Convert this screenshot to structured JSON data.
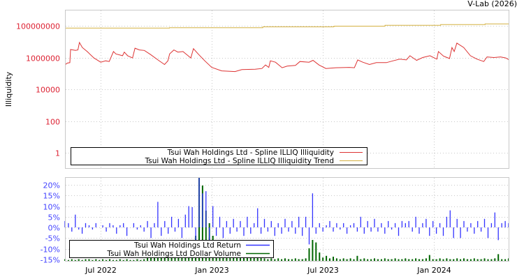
{
  "credit": "V-Lab (2026)",
  "colors": {
    "illiq": "#dd3333",
    "trend": "#d4b040",
    "ret": "#3333ff",
    "vol": "#006600",
    "ytick_top": "#dd2233",
    "ytick_bottom": "#4444ff",
    "grid": "#c8c8c8"
  },
  "chart_data": [
    {
      "type": "line",
      "title": "",
      "ylabel": "Illiquidity",
      "yscale": "log",
      "ylim": [
        0.3,
        1000000000
      ],
      "yticks": [
        1,
        100,
        10000,
        1000000,
        100000000
      ],
      "ytick_labels": [
        "1",
        "100",
        "10000",
        "1000000",
        "100000000"
      ],
      "xlim": [
        2022.34,
        2024.336
      ],
      "xticks": [
        2022.5,
        2023.0,
        2023.5,
        2024.0
      ],
      "grid": true,
      "legend_position": "bottom-left",
      "series": [
        {
          "name": "Tsui Wah Holdings Ltd - Spline ILLIQ Illiquidity",
          "color_key": "illiq",
          "points": [
            [
              2022.342,
              363000
            ],
            [
              2022.35,
              447000
            ],
            [
              2022.362,
              476000
            ],
            [
              2022.365,
              3200000
            ],
            [
              2022.387,
              2800000
            ],
            [
              2022.398,
              3000000
            ],
            [
              2022.405,
              8900000
            ],
            [
              2022.418,
              4300000
            ],
            [
              2022.44,
              2400000
            ],
            [
              2022.47,
              940000
            ],
            [
              2022.501,
              510000
            ],
            [
              2022.523,
              620000
            ],
            [
              2022.539,
              560000
            ],
            [
              2022.558,
              2400000
            ],
            [
              2022.569,
              1700000
            ],
            [
              2022.599,
              1300000
            ],
            [
              2022.607,
              2200000
            ],
            [
              2022.622,
              1300000
            ],
            [
              2022.644,
              940000
            ],
            [
              2022.655,
              3900000
            ],
            [
              2022.675,
              3000000
            ],
            [
              2022.697,
              2800000
            ],
            [
              2022.725,
              1550000
            ],
            [
              2022.758,
              710000
            ],
            [
              2022.788,
              363000
            ],
            [
              2022.803,
              620000
            ],
            [
              2022.811,
              1700000
            ],
            [
              2022.83,
              3000000
            ],
            [
              2022.848,
              2200000
            ],
            [
              2022.871,
              2400000
            ],
            [
              2022.894,
              1300000
            ],
            [
              2022.906,
              940000
            ],
            [
              2022.918,
              3600000
            ],
            [
              2022.939,
              1700000
            ],
            [
              2022.969,
              620000
            ],
            [
              2023.0,
              240000
            ],
            [
              2023.045,
              145000
            ],
            [
              2023.105,
              131000
            ],
            [
              2023.136,
              174000
            ],
            [
              2023.196,
              185000
            ],
            [
              2023.226,
              205000
            ],
            [
              2023.242,
              340000
            ],
            [
              2023.257,
              240000
            ],
            [
              2023.264,
              620000
            ],
            [
              2023.287,
              510000
            ],
            [
              2023.317,
              228000
            ],
            [
              2023.34,
              287000
            ],
            [
              2023.377,
              318000
            ],
            [
              2023.397,
              560000
            ],
            [
              2023.438,
              510000
            ],
            [
              2023.456,
              665000
            ],
            [
              2023.483,
              340000
            ],
            [
              2023.514,
              205000
            ],
            [
              2023.559,
              228000
            ],
            [
              2023.619,
              240000
            ],
            [
              2023.642,
              228000
            ],
            [
              2023.657,
              710000
            ],
            [
              2023.68,
              510000
            ],
            [
              2023.71,
              363000
            ],
            [
              2023.741,
              476000
            ],
            [
              2023.786,
              476000
            ],
            [
              2023.816,
              620000
            ],
            [
              2023.846,
              790000
            ],
            [
              2023.876,
              710000
            ],
            [
              2023.892,
              1300000
            ],
            [
              2023.922,
              665000
            ],
            [
              2023.949,
              1000000
            ],
            [
              2023.982,
              1300000
            ],
            [
              2024.013,
              790000
            ],
            [
              2024.02,
              2400000
            ],
            [
              2024.043,
              1220000
            ],
            [
              2024.07,
              870000
            ],
            [
              2024.081,
              4300000
            ],
            [
              2024.091,
              2400000
            ],
            [
              2024.103,
              8100000
            ],
            [
              2024.134,
              4300000
            ],
            [
              2024.164,
              1300000
            ],
            [
              2024.194,
              790000
            ],
            [
              2024.224,
              560000
            ],
            [
              2024.239,
              1100000
            ],
            [
              2024.27,
              1000000
            ],
            [
              2024.3,
              1100000
            ],
            [
              2024.323,
              940000
            ],
            [
              2024.336,
              740000
            ]
          ]
        },
        {
          "name": "Tsui Wah Holdings Ltd - Spline ILLIQ Illiquidity Trend",
          "color_key": "trend",
          "points": [
            [
              2022.34,
              72000000
            ],
            [
              2022.81,
              72000000
            ],
            [
              2022.81,
              76000000
            ],
            [
              2023.23,
              76000000
            ],
            [
              2023.23,
              86000000
            ],
            [
              2023.55,
              86000000
            ],
            [
              2023.55,
              95000000
            ],
            [
              2023.78,
              95000000
            ],
            [
              2023.78,
              108000000
            ],
            [
              2024.03,
              108000000
            ],
            [
              2024.03,
              120000000
            ],
            [
              2024.23,
              120000000
            ],
            [
              2024.23,
              133000000
            ],
            [
              2024.336,
              133000000
            ]
          ]
        }
      ]
    },
    {
      "type": "bar",
      "ylabel": "",
      "ylim": [
        -15,
        23.6
      ],
      "yticks": [
        -15,
        -10,
        -5,
        0,
        5,
        10,
        15,
        20
      ],
      "ytick_labels": [
        "-15%",
        "-10%",
        "-5%",
        "0%",
        "5%",
        "10%",
        "15%",
        "20%"
      ],
      "xlim": [
        2022.34,
        2024.336
      ],
      "xticks": [
        2022.5,
        2023.0,
        2023.5,
        2024.0
      ],
      "xtick_labels": [
        "Jul 2022",
        "Jan 2023",
        "Jul 2023",
        "Jan 2024"
      ],
      "grid": true,
      "legend_position": "bottom-left",
      "series": [
        {
          "name": "Tsui Wah Holdings Ltd Return",
          "color_key": "ret",
          "unit": "%",
          "values": [
            3,
            2,
            -2,
            6,
            -1,
            -3,
            2,
            1,
            -1,
            2,
            0,
            1,
            -2,
            2,
            1,
            -3,
            1,
            2,
            -4,
            0,
            2,
            -1,
            1,
            -2,
            3,
            -5,
            2,
            12,
            -4,
            3,
            -3,
            5,
            -2,
            4,
            -5,
            6,
            10,
            9.5,
            -6,
            25,
            16,
            17,
            -8,
            10,
            -4,
            5,
            -5,
            3,
            -3,
            4,
            -2,
            3,
            -4,
            5,
            -3,
            2,
            9,
            -3,
            4,
            -2,
            3,
            -4,
            2,
            -3,
            4,
            -2,
            3,
            -3,
            5,
            -4,
            5,
            -8,
            16,
            -3,
            2,
            -2,
            1,
            3,
            -2,
            2,
            -1,
            2,
            -3,
            1,
            2,
            -2,
            5,
            -3,
            3,
            -2,
            4,
            -2,
            2,
            -3,
            3,
            -1,
            2,
            -4,
            3,
            2,
            3,
            -2,
            5,
            -3,
            2,
            4,
            -4,
            3,
            -3,
            2,
            -4,
            5,
            8,
            -5,
            4,
            -5,
            3,
            -2,
            2,
            -3,
            3,
            -2,
            4,
            -5,
            2,
            7,
            -6,
            2,
            3,
            2
          ]
        },
        {
          "name": "Tsui Wah Holdings Ltd Dollar Volume",
          "color_key": "vol",
          "unit": "relative",
          "values": [
            0.02,
            0.01,
            0.02,
            0.01,
            0.02,
            0.01,
            0.02,
            0.02,
            0.01,
            0.02,
            0.01,
            0.02,
            0.01,
            0.02,
            0.01,
            0.01,
            0.02,
            0.01,
            0.02,
            0.01,
            0.01,
            0.02,
            0.01,
            0.02,
            0.06,
            0.08,
            0.1,
            0.07,
            0.06,
            0.05,
            0.04,
            0.05,
            0.04,
            0.06,
            0.05,
            0.07,
            0.08,
            0.06,
            0.3,
            1.0,
            0.9,
            0.6,
            0.45,
            0.3,
            0.25,
            0.2,
            0.15,
            0.12,
            0.1,
            0.08,
            0.06,
            0.07,
            0.05,
            0.04,
            0.05,
            0.06,
            0.05,
            0.04,
            0.03,
            0.02,
            0.03,
            0.02,
            0.03,
            0.02,
            0.03,
            0.02,
            0.02,
            0.03,
            0.02,
            0.02,
            0.03,
            0.15,
            0.25,
            0.22,
            0.1,
            0.04,
            0.06,
            0.03,
            0.05,
            0.03,
            0.02,
            0.03,
            0.02,
            0.03,
            0.02,
            0.06,
            0.02,
            0.03,
            0.02,
            0.02,
            0.03,
            0.02,
            0.02,
            0.03,
            0.02,
            0.02,
            0.03,
            0.02,
            0.02,
            0.03,
            0.02,
            0.02,
            0.03,
            0.02,
            0.02,
            0.03,
            0.07,
            0.02,
            0.02,
            0.03,
            0.02,
            0.03,
            0.02,
            0.02,
            0.03,
            0.02,
            0.03,
            0.02,
            0.02,
            0.03,
            0.02,
            0.02,
            0.03,
            0.02,
            0.02,
            0.03,
            0.08,
            0.02,
            0.02,
            0.03
          ]
        }
      ]
    }
  ]
}
